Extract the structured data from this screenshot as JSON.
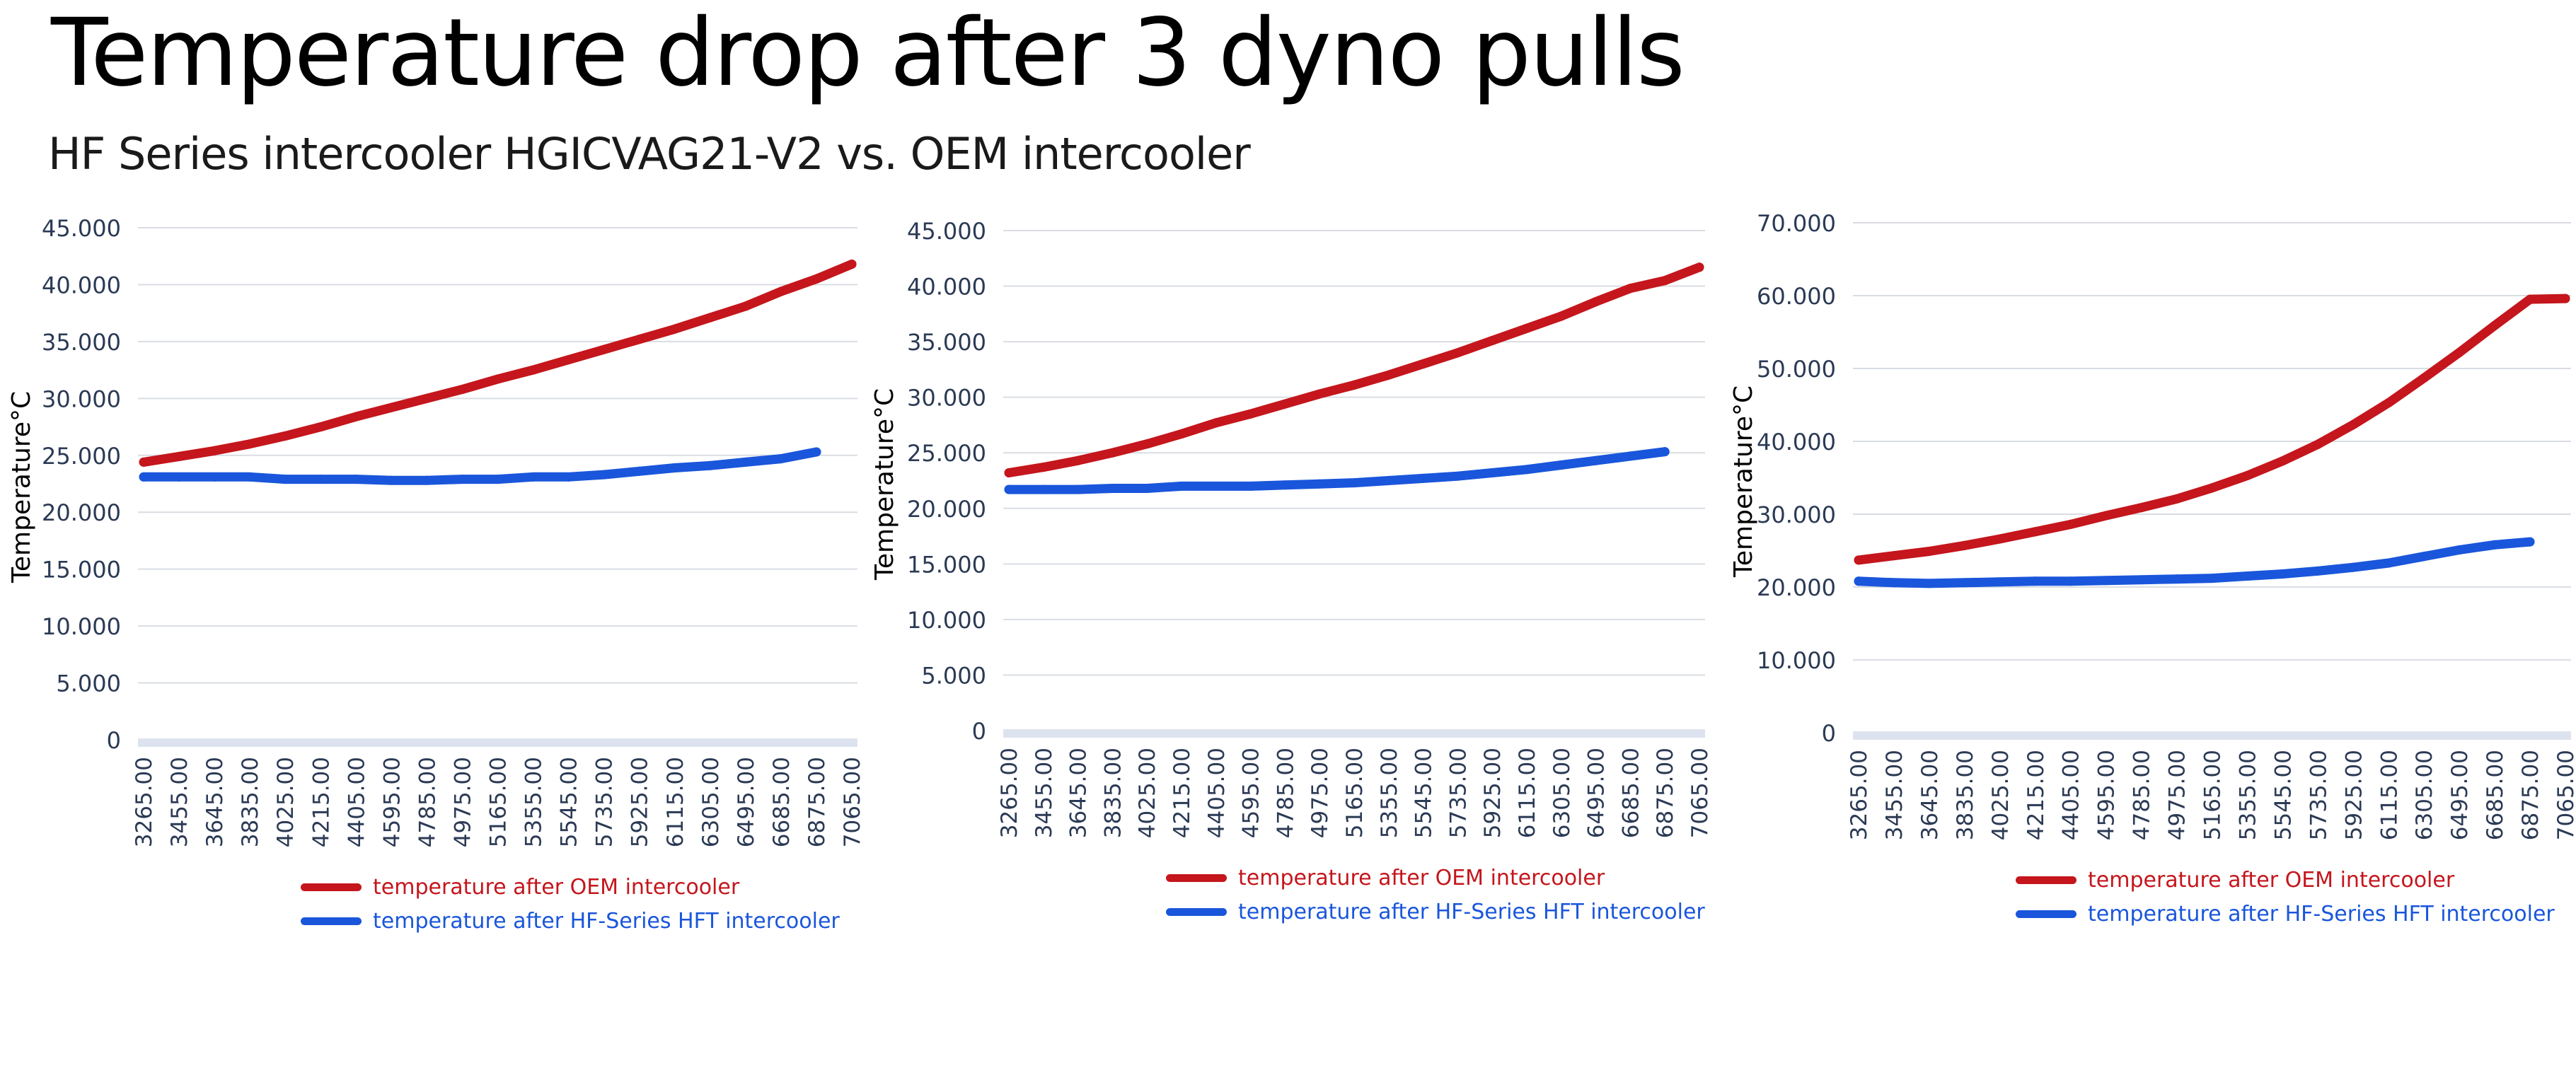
{
  "page": {
    "title": "Temperature drop after 3 dyno pulls",
    "subtitle": "HF Series intercooler HGICVAG21-V2 vs. OEM intercooler"
  },
  "colors": {
    "oem": "#c4161c",
    "hf": "#1a56db",
    "grid": "#d9dde3",
    "axis_text": "#2b3a55",
    "axis_band": "#dde3ee"
  },
  "chart_data": [
    {
      "type": "line",
      "ylabel": "Temperature°C",
      "ylim": [
        0,
        45000
      ],
      "yticks": [
        "0",
        "5.000",
        "10.000",
        "15.000",
        "20.000",
        "25.000",
        "30.000",
        "35.000",
        "40.000",
        "45.000"
      ],
      "ytick_values": [
        0,
        5000,
        10000,
        15000,
        20000,
        25000,
        30000,
        35000,
        40000,
        45000
      ],
      "categories": [
        "3265.00",
        "3455.00",
        "3645.00",
        "3835.00",
        "4025.00",
        "4215.00",
        "4405.00",
        "4595.00",
        "4785.00",
        "4975.00",
        "5165.00",
        "5355.00",
        "5545.00",
        "5735.00",
        "5925.00",
        "6115.00",
        "6305.00",
        "6495.00",
        "6685.00",
        "6875.00",
        "7065.00"
      ],
      "legend_position": "bottom",
      "series": [
        {
          "name": "temperature after OEM intercooler",
          "color": "#c4161c",
          "values": [
            24400,
            24900,
            25400,
            26000,
            26700,
            27500,
            28400,
            29200,
            30000,
            30800,
            31700,
            32500,
            33400,
            34300,
            35200,
            36100,
            37100,
            38100,
            39400,
            40500,
            41800
          ]
        },
        {
          "name": "temperature after HF-Series HFT intercooler",
          "color": "#1a56db",
          "values": [
            23100,
            23100,
            23100,
            23100,
            22900,
            22900,
            22900,
            22800,
            22800,
            22900,
            22900,
            23100,
            23100,
            23300,
            23600,
            23900,
            24100,
            24400,
            24700,
            25300,
            null
          ]
        }
      ]
    },
    {
      "type": "line",
      "ylabel": "Temperature°C",
      "ylim": [
        0,
        45000
      ],
      "yticks": [
        "0",
        "5.000",
        "10.000",
        "15.000",
        "20.000",
        "25.000",
        "30.000",
        "35.000",
        "40.000",
        "45.000"
      ],
      "ytick_values": [
        0,
        5000,
        10000,
        15000,
        20000,
        25000,
        30000,
        35000,
        40000,
        45000
      ],
      "categories": [
        "3265.00",
        "3455.00",
        "3645.00",
        "3835.00",
        "4025.00",
        "4215.00",
        "4405.00",
        "4595.00",
        "4785.00",
        "4975.00",
        "5165.00",
        "5355.00",
        "5545.00",
        "5735.00",
        "5925.00",
        "6115.00",
        "6305.00",
        "6495.00",
        "6685.00",
        "6875.00",
        "7065.00"
      ],
      "legend_position": "bottom",
      "series": [
        {
          "name": "temperature after OEM intercooler",
          "color": "#c4161c",
          "values": [
            23200,
            23700,
            24300,
            25000,
            25800,
            26700,
            27700,
            28500,
            29400,
            30300,
            31100,
            32000,
            33000,
            34000,
            35100,
            36200,
            37300,
            38600,
            39800,
            40500,
            41700
          ]
        },
        {
          "name": "temperature after HF-Series HFT intercooler",
          "color": "#1a56db",
          "values": [
            21700,
            21700,
            21700,
            21800,
            21800,
            22000,
            22000,
            22000,
            22100,
            22200,
            22300,
            22500,
            22700,
            22900,
            23200,
            23500,
            23900,
            24300,
            24700,
            25100,
            null
          ]
        }
      ]
    },
    {
      "type": "line",
      "ylabel": "Temperature°C",
      "ylim": [
        0,
        70000
      ],
      "yticks": [
        "0",
        "10.000",
        "20.000",
        "30.000",
        "40.000",
        "50.000",
        "60.000",
        "70.000"
      ],
      "ytick_values": [
        0,
        10000,
        20000,
        30000,
        40000,
        50000,
        60000,
        70000
      ],
      "categories": [
        "3265.00",
        "3455.00",
        "3645.00",
        "3835.00",
        "4025.00",
        "4215.00",
        "4405.00",
        "4595.00",
        "4785.00",
        "4975.00",
        "5165.00",
        "5355.00",
        "5545.00",
        "5735.00",
        "5925.00",
        "6115.00",
        "6305.00",
        "6495.00",
        "6685.00",
        "6875.00",
        "7065.00"
      ],
      "legend_position": "bottom",
      "series": [
        {
          "name": "temperature after OEM intercooler",
          "color": "#c4161c",
          "values": [
            23700,
            24300,
            24900,
            25700,
            26600,
            27600,
            28600,
            29800,
            30900,
            32100,
            33600,
            35300,
            37300,
            39600,
            42300,
            45300,
            48700,
            52200,
            55900,
            59500,
            59600
          ]
        },
        {
          "name": "temperature after HF-Series HFT intercooler",
          "color": "#1a56db",
          "values": [
            20800,
            20600,
            20500,
            20600,
            20700,
            20800,
            20800,
            20900,
            21000,
            21100,
            21200,
            21500,
            21800,
            22200,
            22700,
            23300,
            24200,
            25100,
            25800,
            26200,
            null
          ]
        }
      ]
    }
  ]
}
